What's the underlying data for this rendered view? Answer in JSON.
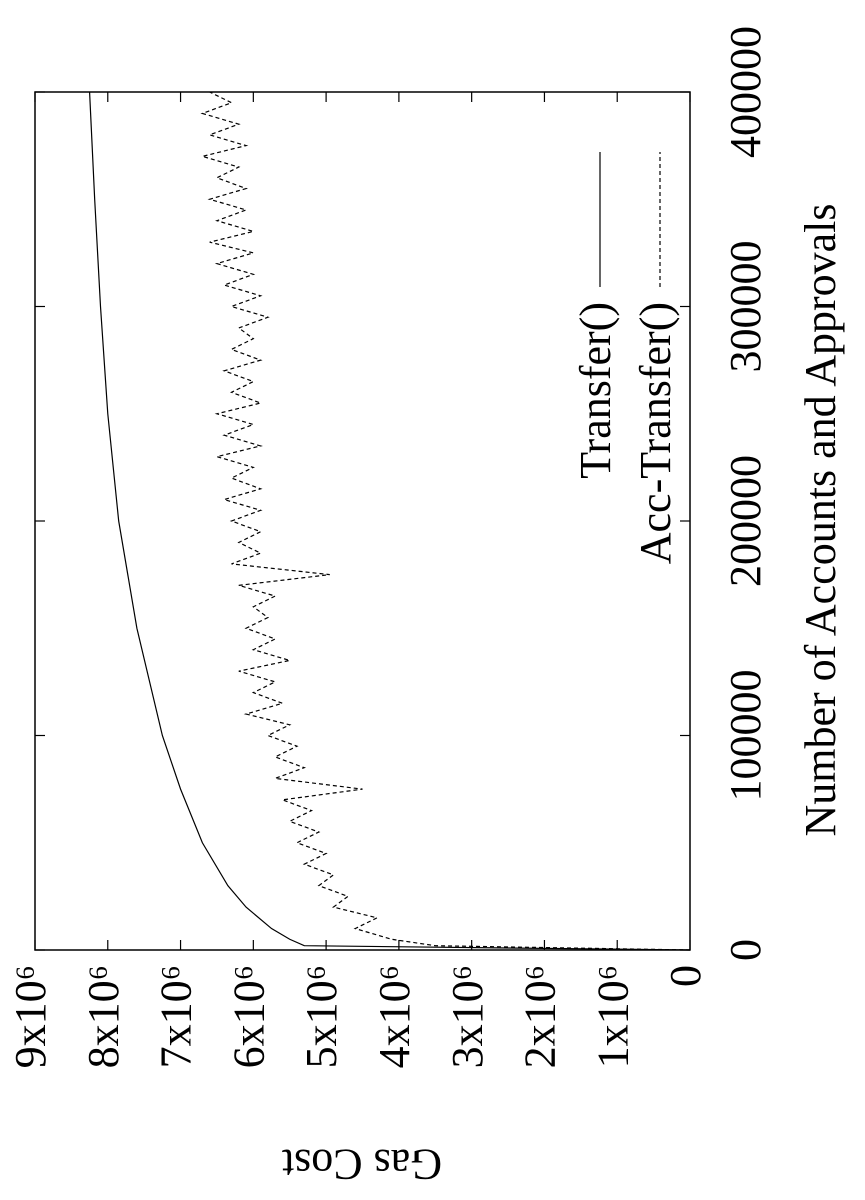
{
  "chart_data": {
    "type": "line",
    "x_label": "Number of Accounts and Approvals",
    "y_label": "Gas Cost",
    "xlim": [
      0,
      400000
    ],
    "xticks": [
      0,
      100000,
      200000,
      300000,
      400000
    ],
    "ylim": [
      0,
      9000000
    ],
    "yticks": [
      0,
      {
        "value": 1000000,
        "label": "1x10⁶"
      },
      {
        "value": 2000000,
        "label": "2x10⁶"
      },
      {
        "value": 3000000,
        "label": "3x10⁶"
      },
      {
        "value": 4000000,
        "label": "4x10⁶"
      },
      {
        "value": 5000000,
        "label": "5x10⁶"
      },
      {
        "value": 6000000,
        "label": "6x10⁶"
      },
      {
        "value": 7000000,
        "label": "7x10⁶"
      },
      {
        "value": 8000000,
        "label": "8x10⁶"
      },
      {
        "value": 9000000,
        "label": "9x10⁶"
      }
    ],
    "legend": "bottom-right",
    "rotation": -90,
    "series": [
      {
        "name": "Transfer()",
        "color": "#000000",
        "line_style": "solid",
        "x": [
          0,
          2000,
          5000,
          10000,
          20000,
          30000,
          50000,
          75000,
          100000,
          150000,
          200000,
          250000,
          300000,
          350000,
          400000
        ],
        "values": [
          0,
          5300000,
          5500000,
          5750000,
          6100000,
          6350000,
          6700000,
          7000000,
          7250000,
          7600000,
          7850000,
          8000000,
          8100000,
          8180000,
          8250000
        ]
      },
      {
        "name": "Acc-Transfer()",
        "color": "#000000",
        "line_style": "dashed",
        "x": [
          0,
          2000,
          5000,
          10000,
          15000,
          20000,
          25000,
          30000,
          35000,
          40000,
          45000,
          50000,
          55000,
          60000,
          65000,
          70000,
          75000,
          80000,
          85000,
          90000,
          95000,
          100000,
          105000,
          110000,
          115000,
          120000,
          125000,
          130000,
          135000,
          140000,
          145000,
          150000,
          155000,
          160000,
          165000,
          170000,
          175000,
          180000,
          185000,
          190000,
          195000,
          200000,
          205000,
          210000,
          215000,
          220000,
          225000,
          230000,
          235000,
          240000,
          245000,
          250000,
          255000,
          260000,
          265000,
          270000,
          275000,
          280000,
          285000,
          290000,
          295000,
          300000,
          305000,
          310000,
          315000,
          320000,
          325000,
          330000,
          335000,
          340000,
          345000,
          350000,
          355000,
          360000,
          365000,
          370000,
          375000,
          380000,
          385000,
          390000,
          395000,
          400000
        ],
        "values": [
          0,
          3500000,
          4100000,
          4600000,
          4300000,
          4900000,
          4700000,
          5100000,
          4900000,
          5300000,
          5000000,
          5400000,
          5100000,
          5500000,
          5200000,
          5600000,
          4500000,
          5700000,
          5300000,
          5700000,
          5400000,
          5800000,
          5500000,
          6100000,
          5600000,
          6000000,
          5700000,
          6200000,
          5500000,
          6000000,
          5700000,
          6100000,
          5800000,
          6000000,
          5700000,
          6200000,
          4950000,
          6300000,
          5900000,
          6200000,
          5900000,
          6300000,
          5900000,
          6400000,
          5900000,
          6300000,
          6000000,
          6500000,
          5900000,
          6400000,
          6000000,
          6500000,
          5900000,
          6300000,
          6000000,
          6400000,
          5900000,
          6300000,
          6000000,
          6200000,
          5800000,
          6300000,
          5900000,
          6400000,
          6000000,
          6500000,
          6000000,
          6600000,
          6000000,
          6500000,
          6100000,
          6600000,
          6100000,
          6500000,
          6200000,
          6700000,
          6100000,
          6600000,
          6200000,
          6700000,
          6300000,
          6600000
        ]
      }
    ]
  }
}
